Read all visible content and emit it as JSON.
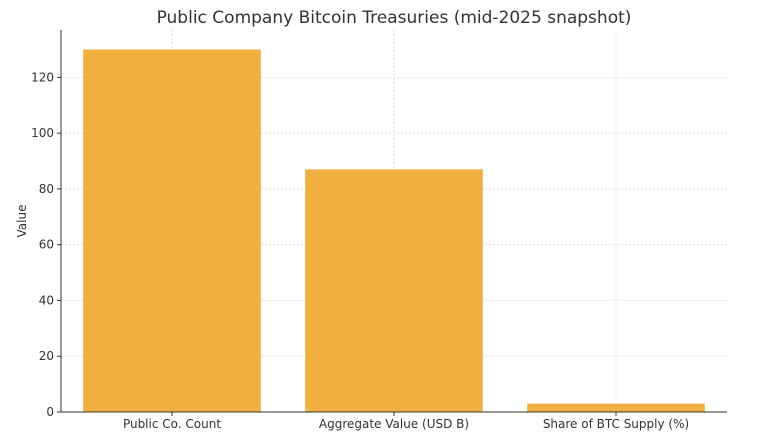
{
  "chart_data": {
    "type": "bar",
    "title": "Public Company Bitcoin Treasuries (mid-2025 snapshot)",
    "xlabel": "",
    "ylabel": "Value",
    "categories": [
      "Public Co. Count",
      "Aggregate Value (USD B)",
      "Share of BTC Supply (%)"
    ],
    "values": [
      130,
      87,
      3
    ],
    "ylim": [
      0,
      137
    ],
    "yticks": [
      0,
      20,
      40,
      60,
      80,
      100,
      120
    ],
    "grid": true,
    "bar_color": "#F0AF3F",
    "axis_color": "#333333",
    "grid_color": "#d9d9d9"
  }
}
